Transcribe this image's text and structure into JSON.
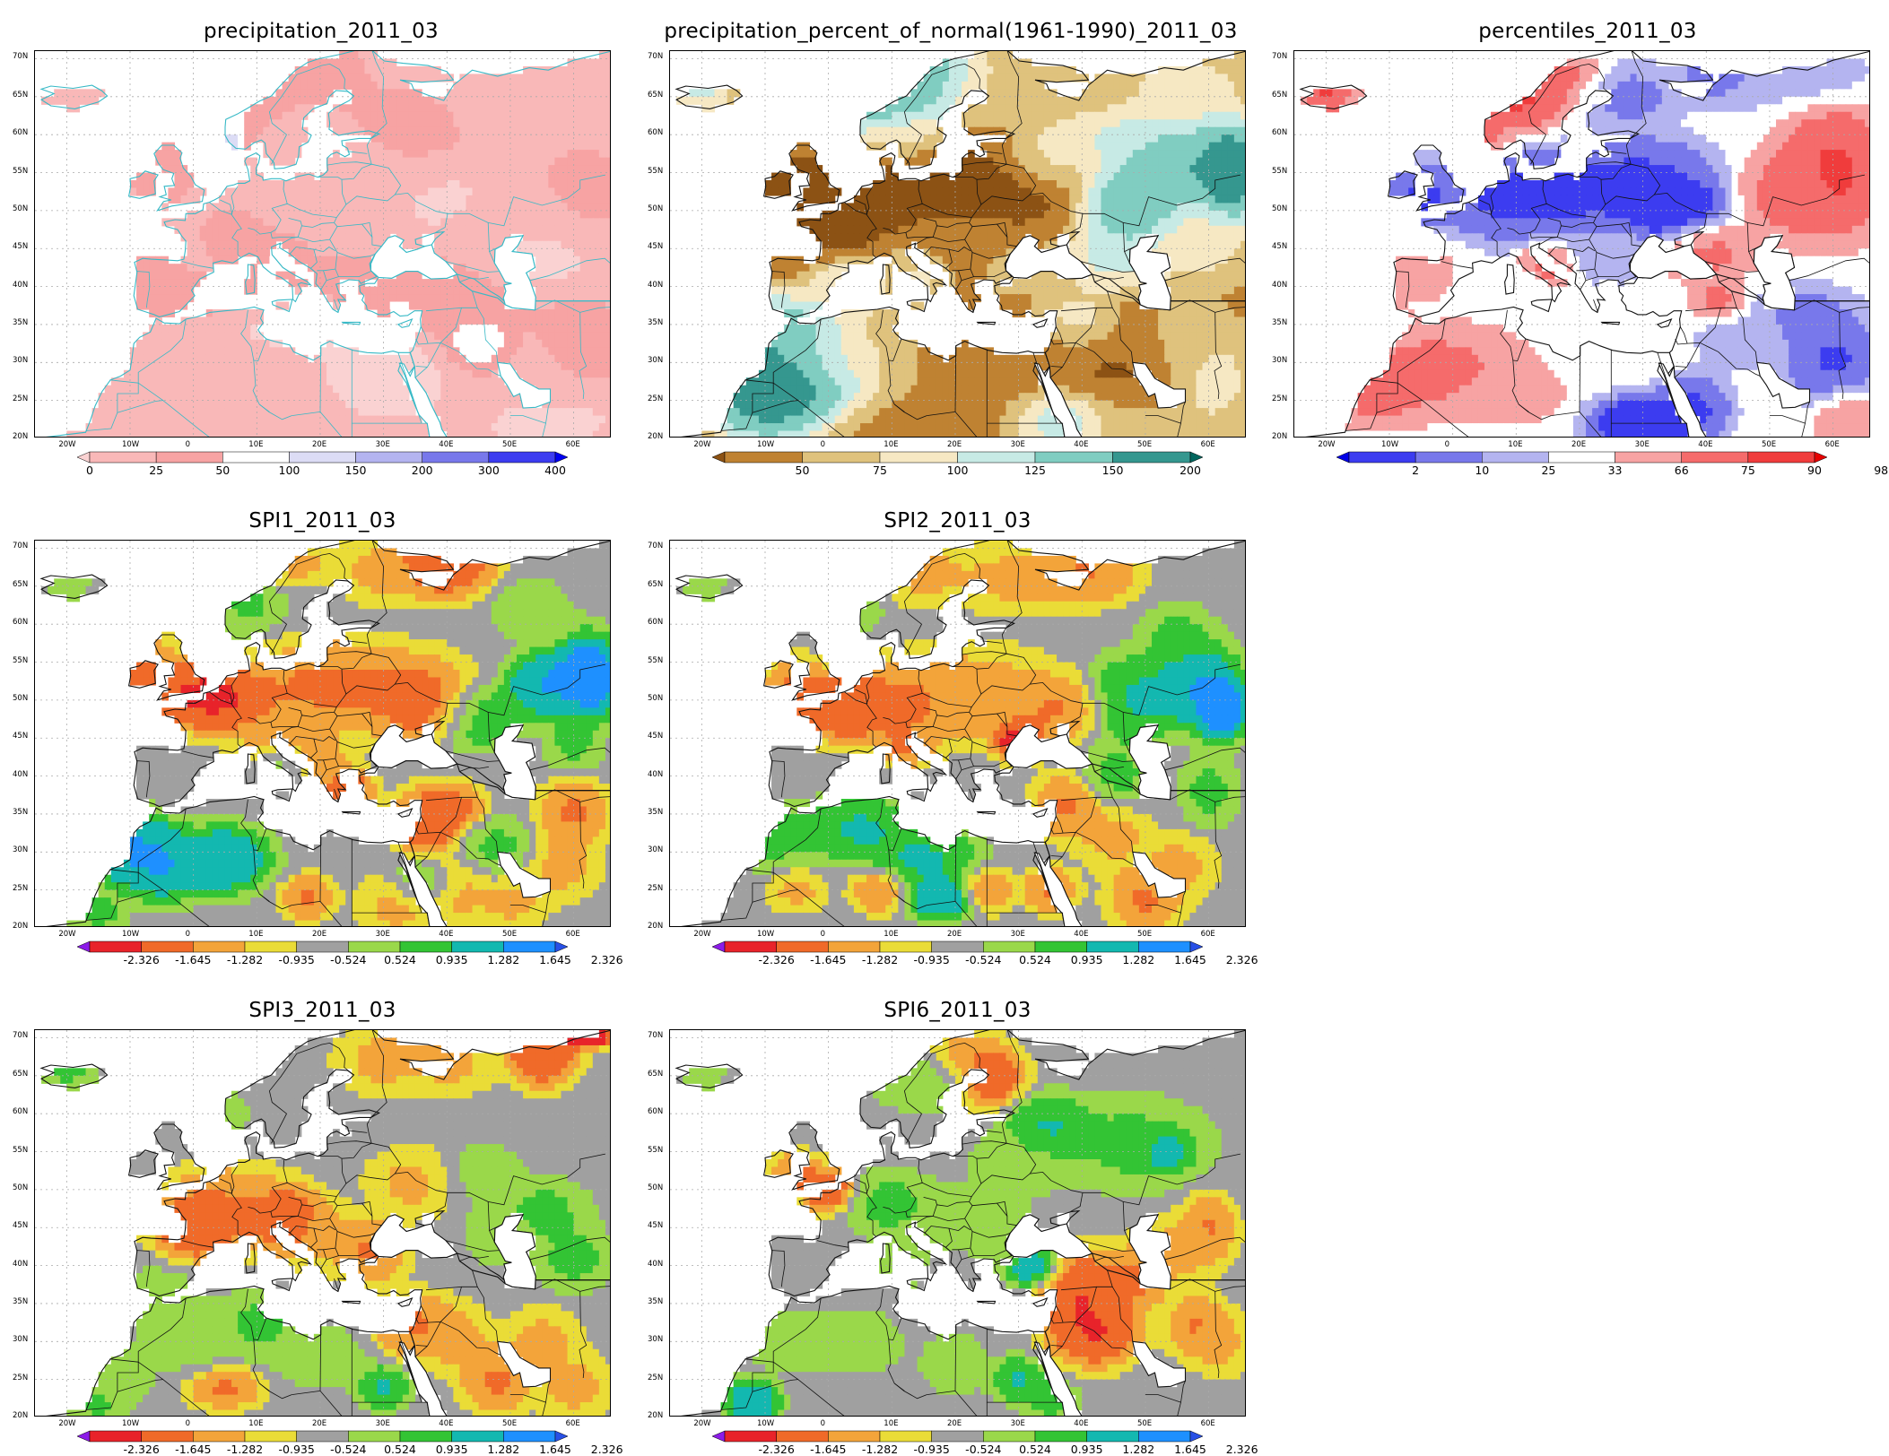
{
  "panels": [
    {
      "title": "precipitation_2011_03",
      "scheme": "precip",
      "lat_ticks": [
        "70N",
        "65N",
        "60N",
        "55N",
        "50N",
        "45N",
        "40N",
        "35N",
        "30N",
        "25N",
        "20N"
      ],
      "lon_ticks": [
        "20W",
        "10W",
        "0",
        "10E",
        "20E",
        "30E",
        "40E",
        "50E",
        "60E"
      ],
      "colorbar": {
        "labels": [
          "0",
          "25",
          "50",
          "100",
          "150",
          "200",
          "300",
          "400"
        ],
        "colors": [
          "#fad2d2",
          "#f9b8b8",
          "#f7a3a3",
          "#ffffff",
          "#dcdcf5",
          "#b4b4f0",
          "#7878eb",
          "#3c3cf0",
          "#0000f0"
        ]
      }
    },
    {
      "title": "precipitation_percent_of_normal(1961-1990)_2011_03",
      "scheme": "pct",
      "lat_ticks": [
        "70N",
        "65N",
        "60N",
        "55N",
        "50N",
        "45N",
        "40N",
        "35N",
        "30N",
        "25N",
        "20N"
      ],
      "lon_ticks": [
        "20W",
        "10W",
        "0",
        "10E",
        "20E",
        "30E",
        "40E",
        "50E",
        "60E"
      ],
      "colorbar": {
        "labels": [
          "50",
          "75",
          "100",
          "125",
          "150",
          "200"
        ],
        "colors": [
          "#8c5214",
          "#bf8232",
          "#dfc27d",
          "#f6e8c3",
          "#c7eae5",
          "#80cdc1",
          "#35978f",
          "#01665e"
        ]
      }
    },
    {
      "title": "percentiles_2011_03",
      "scheme": "perc",
      "lat_ticks": [
        "70N",
        "65N",
        "60N",
        "55N",
        "50N",
        "45N",
        "40N",
        "35N",
        "30N",
        "25N",
        "20N"
      ],
      "lon_ticks": [
        "20W",
        "10W",
        "0",
        "10E",
        "20E",
        "30E",
        "40E",
        "50E",
        "60E"
      ],
      "colorbar": {
        "labels": [
          "2",
          "10",
          "25",
          "33",
          "66",
          "75",
          "90",
          "98"
        ],
        "colors": [
          "#0000e6",
          "#3c3cf0",
          "#7878eb",
          "#b4b4f0",
          "#ffffff",
          "#f7a3a3",
          "#f56b6b",
          "#f03c3c",
          "#e60000"
        ]
      }
    },
    {
      "title": "SPI1_2011_03",
      "scheme": "spi",
      "lat_ticks": [
        "70N",
        "65N",
        "60N",
        "55N",
        "50N",
        "45N",
        "40N",
        "35N",
        "30N",
        "25N",
        "20N"
      ],
      "lon_ticks": [
        "20W",
        "10W",
        "0",
        "10E",
        "20E",
        "30E",
        "40E",
        "50E",
        "60E"
      ],
      "colorbar": {
        "labels": [
          "-2.326",
          "-1.645",
          "-1.282",
          "-0.935",
          "-0.524",
          "0.524",
          "0.935",
          "1.282",
          "1.645",
          "2.326"
        ],
        "colors": [
          "#8c1ce8",
          "#e8232a",
          "#f06a29",
          "#f3a43a",
          "#eadc37",
          "#a0a0a0",
          "#9ad84a",
          "#33c434",
          "#13b8b0",
          "#1e90ff",
          "#2850e6"
        ]
      }
    },
    {
      "title": "SPI2_2011_03",
      "scheme": "spi",
      "lat_ticks": [
        "70N",
        "65N",
        "60N",
        "55N",
        "50N",
        "45N",
        "40N",
        "35N",
        "30N",
        "25N",
        "20N"
      ],
      "lon_ticks": [
        "20W",
        "10W",
        "0",
        "10E",
        "20E",
        "30E",
        "40E",
        "50E",
        "60E"
      ],
      "colorbar": {
        "labels": [
          "-2.326",
          "-1.645",
          "-1.282",
          "-0.935",
          "-0.524",
          "0.524",
          "0.935",
          "1.282",
          "1.645",
          "2.326"
        ],
        "colors": [
          "#8c1ce8",
          "#e8232a",
          "#f06a29",
          "#f3a43a",
          "#eadc37",
          "#a0a0a0",
          "#9ad84a",
          "#33c434",
          "#13b8b0",
          "#1e90ff",
          "#2850e6"
        ]
      }
    },
    {
      "title": "SPI3_2011_03",
      "scheme": "spi",
      "lat_ticks": [
        "70N",
        "65N",
        "60N",
        "55N",
        "50N",
        "45N",
        "40N",
        "35N",
        "30N",
        "25N",
        "20N"
      ],
      "lon_ticks": [
        "20W",
        "10W",
        "0",
        "10E",
        "20E",
        "30E",
        "40E",
        "50E",
        "60E"
      ],
      "colorbar": {
        "labels": [
          "-2.326",
          "-1.645",
          "-1.282",
          "-0.935",
          "-0.524",
          "0.524",
          "0.935",
          "1.282",
          "1.645",
          "2.326"
        ],
        "colors": [
          "#8c1ce8",
          "#e8232a",
          "#f06a29",
          "#f3a43a",
          "#eadc37",
          "#a0a0a0",
          "#9ad84a",
          "#33c434",
          "#13b8b0",
          "#1e90ff",
          "#2850e6"
        ]
      }
    },
    {
      "title": "SPI6_2011_03",
      "scheme": "spi",
      "lat_ticks": [
        "70N",
        "65N",
        "60N",
        "55N",
        "50N",
        "45N",
        "40N",
        "35N",
        "30N",
        "25N",
        "20N"
      ],
      "lon_ticks": [
        "20W",
        "10W",
        "0",
        "10E",
        "20E",
        "30E",
        "40E",
        "50E",
        "60E"
      ],
      "colorbar": {
        "labels": [
          "-2.326",
          "-1.645",
          "-1.282",
          "-0.935",
          "-0.524",
          "0.524",
          "0.935",
          "1.282",
          "1.645",
          "2.326"
        ],
        "colors": [
          "#8c1ce8",
          "#e8232a",
          "#f06a29",
          "#f3a43a",
          "#eadc37",
          "#a0a0a0",
          "#9ad84a",
          "#33c434",
          "#13b8b0",
          "#1e90ff",
          "#2850e6"
        ]
      }
    }
  ]
}
